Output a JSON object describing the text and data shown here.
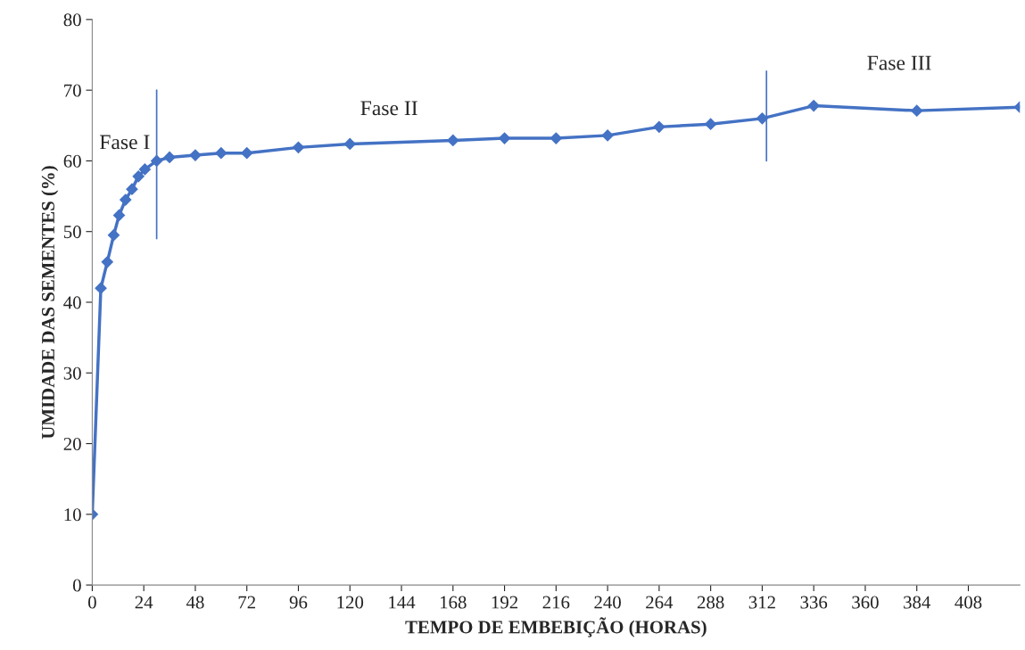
{
  "chart_data": {
    "type": "line",
    "xlabel": "TEMPO DE EMBEBIÇÃO (HORAS)",
    "ylabel": "UMIDADE DAS SEMENTES (%)",
    "xlim": [
      0,
      432
    ],
    "xticks": [
      0,
      24,
      48,
      72,
      96,
      120,
      144,
      168,
      192,
      216,
      240,
      264,
      288,
      312,
      336,
      360,
      384,
      408
    ],
    "ylim": [
      0,
      80
    ],
    "yticks": [
      0,
      10,
      20,
      30,
      40,
      50,
      60,
      70,
      80
    ],
    "grid": false,
    "legend": false,
    "series": [
      {
        "color": "#4472c4",
        "marker": "diamond",
        "x": [
          0,
          4,
          7,
          10,
          12.5,
          15.5,
          18.5,
          21.5,
          24.5,
          30,
          36,
          48,
          60,
          72,
          96,
          120,
          168,
          192,
          216,
          240,
          264,
          288,
          312,
          336,
          384,
          432
        ],
        "values": [
          10,
          42,
          45.7,
          49.5,
          52.3,
          54.5,
          56,
          57.8,
          58.8,
          60,
          60.5,
          60.8,
          61.1,
          61.1,
          61.9,
          62.4,
          62.9,
          63.2,
          63.2,
          63.6,
          64.8,
          65.2,
          66,
          67.8,
          67.1,
          67.6
        ]
      },
      {
        "color": "#4472c4",
        "marker": "none",
        "x": [
          30,
          30
        ],
        "values": [
          49,
          70
        ]
      },
      {
        "color": "#4472c4",
        "marker": "none",
        "x": [
          314,
          314
        ],
        "values": [
          60,
          72.7
        ]
      }
    ],
    "annotations": [
      "Fase I",
      "Fase II",
      "Fase III"
    ]
  }
}
